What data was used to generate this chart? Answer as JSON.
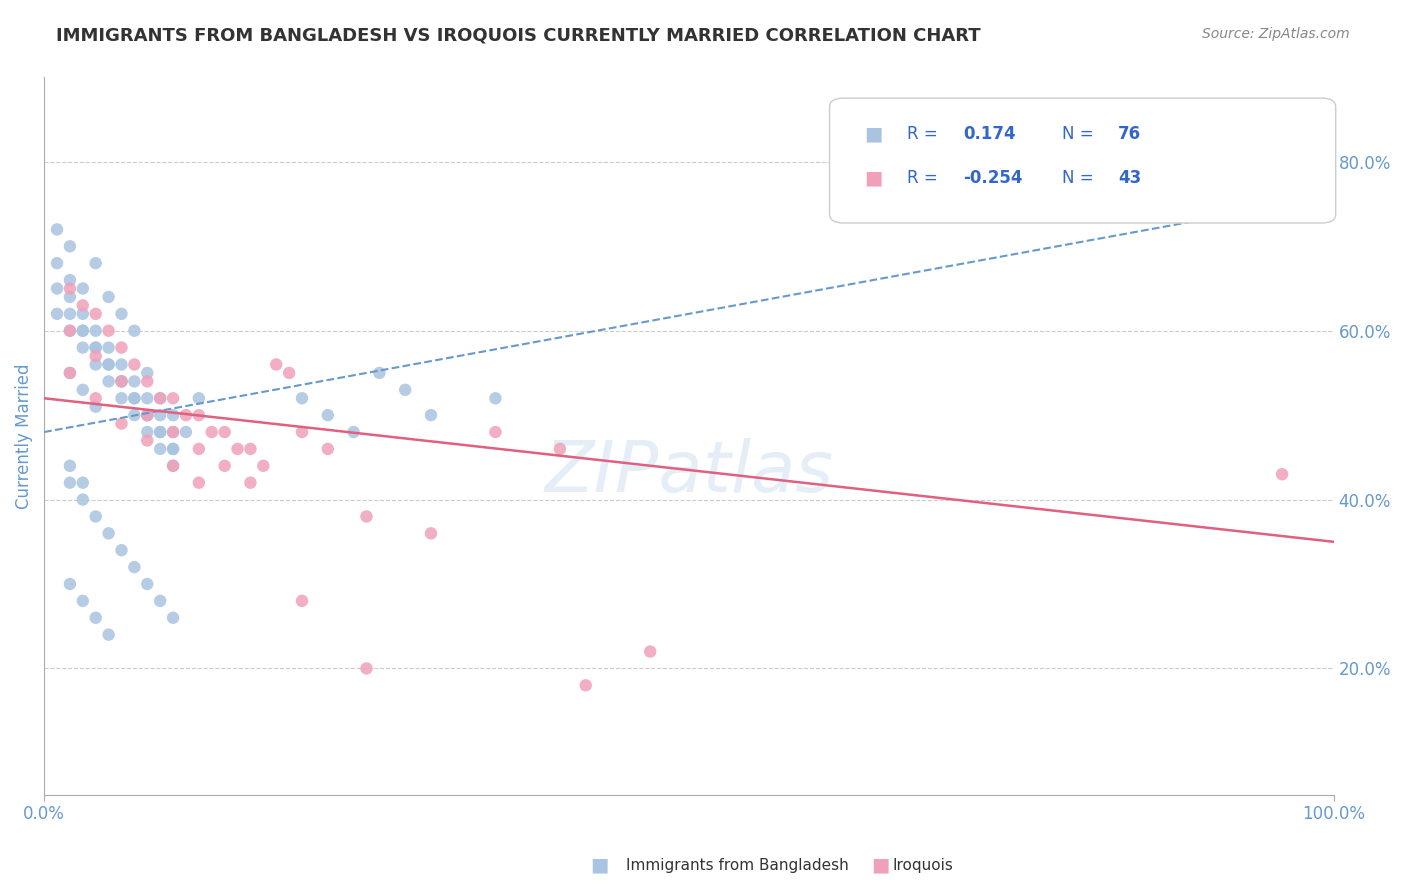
{
  "title": "IMMIGRANTS FROM BANGLADESH VS IROQUOIS CURRENTLY MARRIED CORRELATION CHART",
  "source_text": "Source: ZipAtlas.com",
  "xlabel": "",
  "ylabel": "Currently Married",
  "right_ytick_labels": [
    "20.0%",
    "40.0%",
    "60.0%",
    "80.0%"
  ],
  "right_ytick_values": [
    0.2,
    0.4,
    0.6,
    0.8
  ],
  "xlim": [
    0.0,
    1.0
  ],
  "ylim": [
    0.05,
    0.9
  ],
  "xtick_labels": [
    "0.0%",
    "100.0%"
  ],
  "xtick_values": [
    0.0,
    1.0
  ],
  "blue_R": 0.174,
  "blue_N": 76,
  "pink_R": -0.254,
  "pink_N": 43,
  "blue_color": "#a8c4e0",
  "pink_color": "#f0a0b8",
  "blue_line_color": "#6699cc",
  "pink_line_color": "#e06080",
  "grid_color": "#cccccc",
  "title_color": "#333333",
  "axis_label_color": "#6699cc",
  "legend_R_color": "#3366cc",
  "watermark": "ZIPatlas",
  "watermark_color": "#ccddee",
  "blue_scatter_x": [
    0.02,
    0.03,
    0.04,
    0.05,
    0.06,
    0.07,
    0.08,
    0.09,
    0.1,
    0.11,
    0.01,
    0.02,
    0.03,
    0.04,
    0.05,
    0.06,
    0.07,
    0.08,
    0.09,
    0.1,
    0.01,
    0.02,
    0.03,
    0.04,
    0.05,
    0.06,
    0.07,
    0.08,
    0.09,
    0.1,
    0.01,
    0.02,
    0.03,
    0.04,
    0.05,
    0.06,
    0.07,
    0.08,
    0.09,
    0.1,
    0.01,
    0.02,
    0.03,
    0.04,
    0.05,
    0.06,
    0.07,
    0.08,
    0.09,
    0.1,
    0.02,
    0.03,
    0.04,
    0.05,
    0.06,
    0.07,
    0.08,
    0.09,
    0.1,
    0.12,
    0.02,
    0.03,
    0.04,
    0.2,
    0.22,
    0.24,
    0.26,
    0.28,
    0.3,
    0.35,
    0.02,
    0.03,
    0.04,
    0.05,
    0.02,
    0.03
  ],
  "blue_scatter_y": [
    0.7,
    0.65,
    0.68,
    0.64,
    0.62,
    0.6,
    0.55,
    0.52,
    0.5,
    0.48,
    0.72,
    0.66,
    0.62,
    0.6,
    0.58,
    0.56,
    0.54,
    0.52,
    0.5,
    0.48,
    0.68,
    0.64,
    0.6,
    0.58,
    0.56,
    0.54,
    0.52,
    0.5,
    0.48,
    0.46,
    0.65,
    0.62,
    0.6,
    0.58,
    0.56,
    0.54,
    0.52,
    0.5,
    0.48,
    0.46,
    0.62,
    0.6,
    0.58,
    0.56,
    0.54,
    0.52,
    0.5,
    0.48,
    0.46,
    0.44,
    0.42,
    0.4,
    0.38,
    0.36,
    0.34,
    0.32,
    0.3,
    0.28,
    0.26,
    0.52,
    0.55,
    0.53,
    0.51,
    0.52,
    0.5,
    0.48,
    0.55,
    0.53,
    0.5,
    0.52,
    0.3,
    0.28,
    0.26,
    0.24,
    0.44,
    0.42
  ],
  "pink_scatter_x": [
    0.02,
    0.04,
    0.06,
    0.08,
    0.1,
    0.12,
    0.14,
    0.16,
    0.18,
    0.2,
    0.03,
    0.05,
    0.07,
    0.09,
    0.11,
    0.13,
    0.15,
    0.17,
    0.19,
    0.22,
    0.02,
    0.04,
    0.06,
    0.08,
    0.1,
    0.12,
    0.14,
    0.16,
    0.35,
    0.4,
    0.02,
    0.04,
    0.06,
    0.08,
    0.1,
    0.12,
    0.25,
    0.3,
    0.42,
    0.47,
    0.2,
    0.25,
    0.96
  ],
  "pink_scatter_y": [
    0.65,
    0.62,
    0.58,
    0.54,
    0.52,
    0.5,
    0.48,
    0.46,
    0.56,
    0.48,
    0.63,
    0.6,
    0.56,
    0.52,
    0.5,
    0.48,
    0.46,
    0.44,
    0.55,
    0.46,
    0.6,
    0.57,
    0.54,
    0.5,
    0.48,
    0.46,
    0.44,
    0.42,
    0.48,
    0.46,
    0.55,
    0.52,
    0.49,
    0.47,
    0.44,
    0.42,
    0.38,
    0.36,
    0.18,
    0.22,
    0.28,
    0.2,
    0.43
  ],
  "blue_trend_x": [
    0.0,
    1.0
  ],
  "blue_trend_y_start": 0.48,
  "blue_trend_y_end": 0.76,
  "pink_trend_x": [
    0.0,
    1.0
  ],
  "pink_trend_y_start": 0.52,
  "pink_trend_y_end": 0.35
}
